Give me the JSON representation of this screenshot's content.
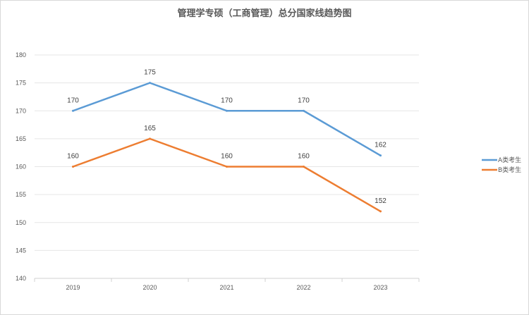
{
  "chart_data": {
    "type": "line",
    "title": "管理学专硕（工商管理）总分国家线趋势图",
    "categories": [
      "2019",
      "2020",
      "2021",
      "2022",
      "2023"
    ],
    "ylim": [
      140,
      180
    ],
    "yticks": [
      140,
      145,
      150,
      155,
      160,
      165,
      170,
      175,
      180
    ],
    "grid": true,
    "legend_position": "right",
    "series": [
      {
        "name": "A类考生",
        "color": "#5b9bd5",
        "values": [
          170,
          175,
          170,
          170,
          162
        ]
      },
      {
        "name": "B类考生",
        "color": "#ed7d31",
        "values": [
          160,
          165,
          160,
          160,
          152
        ]
      }
    ],
    "data_labels": true
  }
}
